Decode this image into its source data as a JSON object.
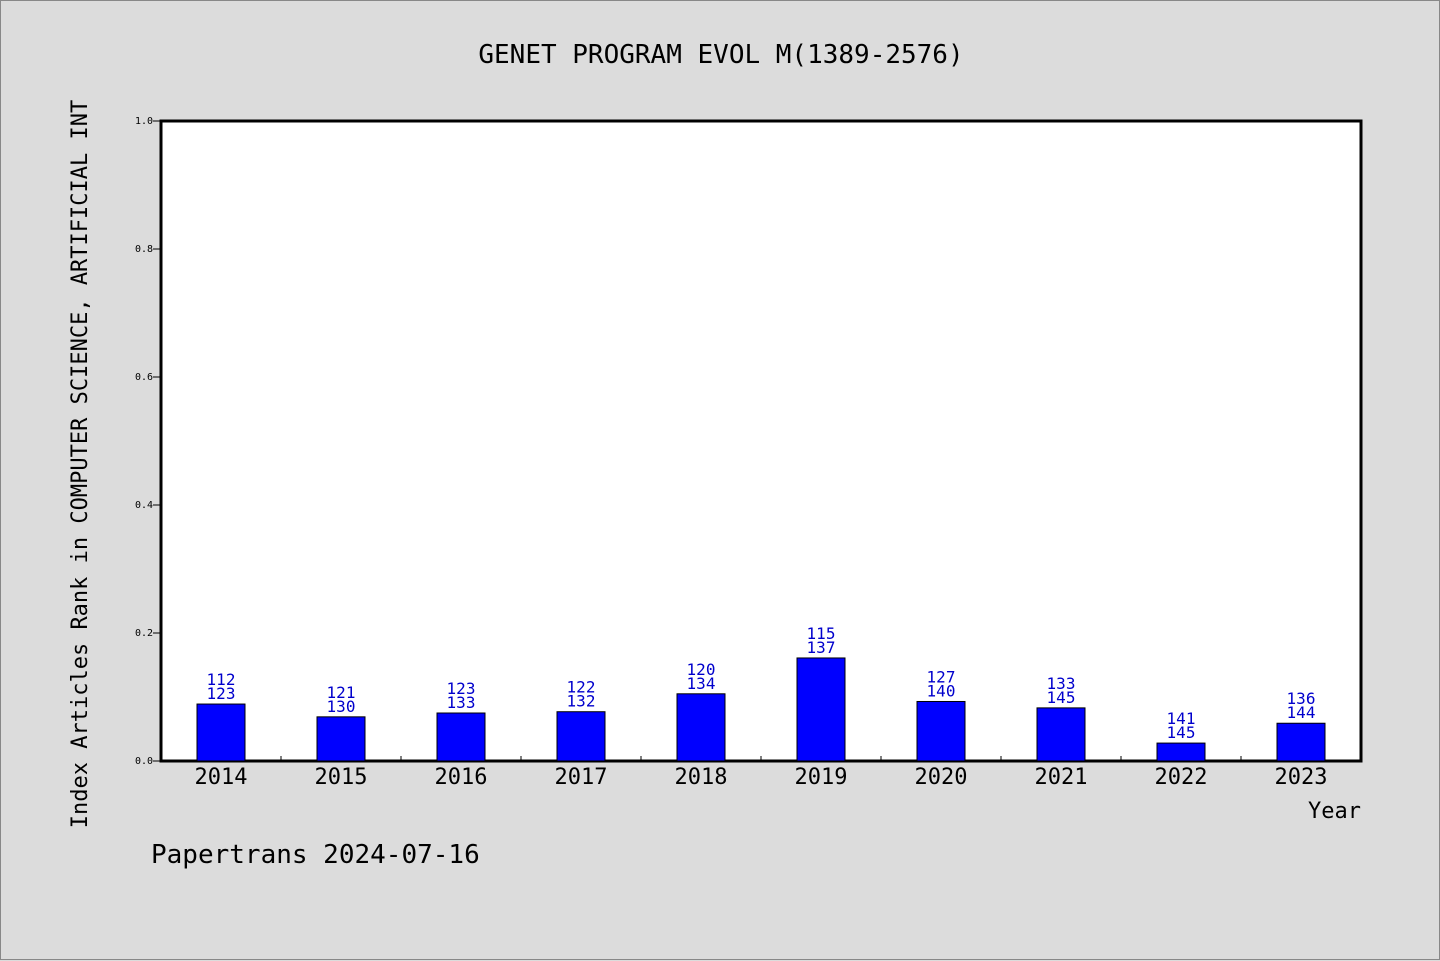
{
  "chart_data": {
    "type": "bar",
    "title": "GENET PROGRAM EVOL M(1389-2576)",
    "xlabel": "Year",
    "ylabel": "Index Articles Rank in COMPUTER SCIENCE, ARTIFICIAL INT",
    "ylim": [
      0,
      1.0
    ],
    "yticks": [
      "0.0",
      "0.2",
      "0.4",
      "0.6",
      "0.8",
      "1.0"
    ],
    "grid": false,
    "categories": [
      "2014",
      "2015",
      "2016",
      "2017",
      "2018",
      "2019",
      "2020",
      "2021",
      "2022",
      "2023"
    ],
    "values": [
      0.089,
      0.069,
      0.075,
      0.077,
      0.105,
      0.161,
      0.093,
      0.083,
      0.028,
      0.059
    ],
    "labels_top": [
      "112",
      "121",
      "123",
      "122",
      "120",
      "115",
      "127",
      "133",
      "141",
      "136"
    ],
    "labels_bottom": [
      "123",
      "130",
      "133",
      "132",
      "134",
      "137",
      "140",
      "145",
      "145",
      "144"
    ],
    "bar_color": "#0000ff",
    "label_color": "#0000cc"
  },
  "footer": "Papertrans 2024-07-16"
}
